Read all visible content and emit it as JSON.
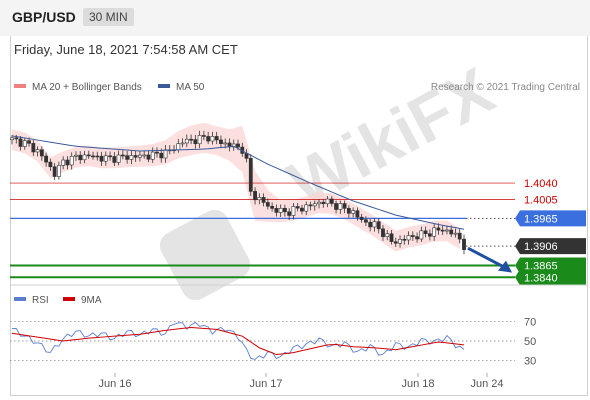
{
  "header": {
    "symbol": "GBP/USD",
    "timeframe": "30 MIN"
  },
  "date_label": "Friday, June 18, 2021 7:54:58 AM CET",
  "legend": {
    "items": [
      {
        "label": "MA 20 + Bollinger Bands",
        "color": "#f08080"
      },
      {
        "label": "MA 50",
        "color": "#3a5a9a"
      }
    ],
    "credit": "Research © 2021 Trading Central"
  },
  "rsi_legend": {
    "items": [
      {
        "label": "RSI",
        "color": "#5b7fd0"
      },
      {
        "label": "9MA",
        "color": "#d00000"
      }
    ]
  },
  "colors": {
    "resistance": "#cc0000",
    "pivot": "#3a6fe0",
    "support": "#1a8a1a",
    "last_price": "#333333",
    "arrow": "#1f4f9f",
    "candle_up": "#333333",
    "candle_down": "#333333",
    "band": "#fbd4d4"
  },
  "chart_data": [
    {
      "type": "candlestick",
      "ylim": [
        1.383,
        1.4195
      ],
      "x_ticks": [
        "Jun 16",
        "Jun 17",
        "Jun 18",
        "Jun 24"
      ],
      "levels": [
        {
          "label": "1.4040",
          "value": 1.404,
          "role": "resistance"
        },
        {
          "label": "1.4005",
          "value": 1.4005,
          "role": "resistance"
        },
        {
          "label": "1.3965",
          "value": 1.3965,
          "role": "pivot"
        },
        {
          "label": "1.3906",
          "value": 1.3906,
          "role": "last"
        },
        {
          "label": "1.3865",
          "value": 1.3865,
          "role": "support"
        },
        {
          "label": "1.3840",
          "value": 1.384,
          "role": "support"
        }
      ],
      "price_path": [
        [
          0,
          1.4132
        ],
        [
          3,
          1.4125
        ],
        [
          6,
          1.4108
        ],
        [
          8,
          1.4085
        ],
        [
          10,
          1.406
        ],
        [
          12,
          1.4085
        ],
        [
          15,
          1.4095
        ],
        [
          18,
          1.4098
        ],
        [
          22,
          1.4092
        ],
        [
          26,
          1.4095
        ],
        [
          30,
          1.4097
        ],
        [
          34,
          1.41
        ],
        [
          37,
          1.4108
        ],
        [
          40,
          1.4128
        ],
        [
          43,
          1.4132
        ],
        [
          46,
          1.4138
        ],
        [
          49,
          1.4126
        ],
        [
          52,
          1.4118
        ],
        [
          54,
          1.4112
        ],
        [
          55,
          1.4085
        ],
        [
          56,
          1.402
        ],
        [
          58,
          1.4005
        ],
        [
          61,
          1.3985
        ],
        [
          64,
          1.3978
        ],
        [
          67,
          1.3985
        ],
        [
          70,
          1.3992
        ],
        [
          73,
          1.4002
        ],
        [
          76,
          1.3993
        ],
        [
          78,
          1.3985
        ],
        [
          80,
          1.3978
        ],
        [
          82,
          1.396
        ],
        [
          85,
          1.395
        ],
        [
          87,
          1.3935
        ],
        [
          89,
          1.3915
        ],
        [
          91,
          1.3918
        ],
        [
          93,
          1.3925
        ],
        [
          96,
          1.393
        ],
        [
          99,
          1.3938
        ],
        [
          101,
          1.3942
        ],
        [
          103,
          1.3935
        ],
        [
          105,
          1.3922
        ],
        [
          106,
          1.3906
        ]
      ],
      "ma50": [
        [
          0,
          1.414
        ],
        [
          15,
          1.4118
        ],
        [
          30,
          1.4108
        ],
        [
          45,
          1.4112
        ],
        [
          52,
          1.4118
        ],
        [
          60,
          1.408
        ],
        [
          70,
          1.404
        ],
        [
          80,
          1.4002
        ],
        [
          90,
          1.3972
        ],
        [
          100,
          1.3952
        ],
        [
          106,
          1.3942
        ]
      ],
      "forecast_target": 1.385
    },
    {
      "type": "line",
      "title": "RSI",
      "ylim": [
        20,
        80
      ],
      "y_ticks": [
        70,
        50,
        30
      ],
      "series": [
        {
          "name": "RSI",
          "values": [
            [
              0,
              63
            ],
            [
              3,
              55
            ],
            [
              6,
              48
            ],
            [
              9,
              38
            ],
            [
              12,
              52
            ],
            [
              15,
              60
            ],
            [
              18,
              55
            ],
            [
              21,
              58
            ],
            [
              24,
              52
            ],
            [
              27,
              60
            ],
            [
              30,
              56
            ],
            [
              33,
              62
            ],
            [
              36,
              57
            ],
            [
              38,
              70
            ],
            [
              41,
              65
            ],
            [
              44,
              68
            ],
            [
              47,
              60
            ],
            [
              50,
              63
            ],
            [
              53,
              55
            ],
            [
              55,
              40
            ],
            [
              57,
              30
            ],
            [
              60,
              38
            ],
            [
              63,
              33
            ],
            [
              66,
              43
            ],
            [
              69,
              46
            ],
            [
              72,
              52
            ],
            [
              75,
              44
            ],
            [
              78,
              48
            ],
            [
              81,
              38
            ],
            [
              84,
              45
            ],
            [
              87,
              35
            ],
            [
              90,
              47
            ],
            [
              93,
              43
            ],
            [
              96,
              51
            ],
            [
              99,
              49
            ],
            [
              102,
              54
            ],
            [
              104,
              46
            ],
            [
              106,
              40
            ]
          ]
        },
        {
          "name": "9MA",
          "values": [
            [
              0,
              58
            ],
            [
              6,
              54
            ],
            [
              12,
              50
            ],
            [
              18,
              53
            ],
            [
              24,
              55
            ],
            [
              30,
              57
            ],
            [
              36,
              61
            ],
            [
              42,
              64
            ],
            [
              48,
              62
            ],
            [
              54,
              55
            ],
            [
              58,
              43
            ],
            [
              62,
              36
            ],
            [
              66,
              38
            ],
            [
              70,
              42
            ],
            [
              75,
              47
            ],
            [
              80,
              44
            ],
            [
              85,
              43
            ],
            [
              90,
              41
            ],
            [
              95,
              45
            ],
            [
              100,
              49
            ],
            [
              106,
              46
            ]
          ]
        }
      ]
    }
  ]
}
